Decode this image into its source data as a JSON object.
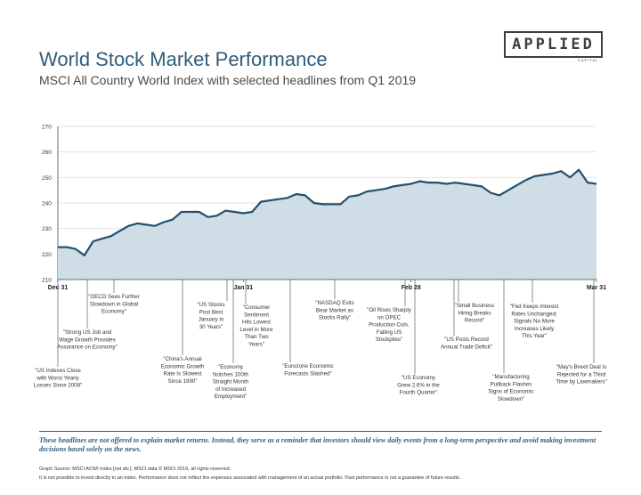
{
  "logo": {
    "main": "APPLIED",
    "sub": "CAPITAL"
  },
  "header": {
    "title": "World Stock Market Performance",
    "subtitle": "MSCI All Country World Index with selected headlines from Q1 2019"
  },
  "footer": {
    "disclaimer": "These headlines are not offered to explain market returns. Instead, they serve as a reminder that investors should view daily events from a long-term perspective and avoid making investment decisions based solely on the news.",
    "source_line1": "Graph Source: MSCI ACWI Index [net div.]. MSCI data © MSCI 2019, all rights reserved.",
    "source_line2": "It is not possible to invest directly in an index. Performance does not reflect the expenses associated with management of an actual portfolio. Past performance is not a guarantee of future results."
  },
  "chart_data": {
    "type": "area",
    "title": "World Stock Market Performance",
    "subtitle": "MSCI All Country World Index with selected headlines from Q1 2019",
    "xlabel": "",
    "ylabel": "",
    "ylim": [
      210,
      270
    ],
    "yticks": [
      210,
      220,
      230,
      240,
      250,
      260,
      270
    ],
    "xticks": [
      {
        "label": "Dec 31",
        "i": 0
      },
      {
        "label": "Jan 31",
        "i": 21
      },
      {
        "label": "Feb 28",
        "i": 40
      },
      {
        "label": "Mar 31",
        "i": 61
      }
    ],
    "grid": true,
    "colors": {
      "fill": "#cfdde6",
      "line": "#23506d",
      "text": "#333333"
    },
    "values": [
      222.7,
      222.7,
      222,
      219.5,
      225,
      226,
      227,
      229,
      231,
      232,
      231.5,
      231,
      232.5,
      233.5,
      236.5,
      236.5,
      236.5,
      234.5,
      235,
      237,
      236.5,
      236,
      236.5,
      240.5,
      241,
      241.5,
      242,
      243.5,
      243,
      240,
      239.5,
      239.5,
      239.5,
      242.5,
      243,
      244.5,
      245,
      245.5,
      246.5,
      247,
      247.5,
      248.5,
      248,
      248,
      247.5,
      248,
      247.5,
      247,
      246.5,
      244,
      243,
      245,
      247,
      249,
      250.5,
      251,
      251.5,
      252.5,
      250,
      253,
      248,
      247.5
    ],
    "annotations": [
      {
        "text": "\"US Indexes Close with Worst Yearly Losses Since 2008\"",
        "i": 0
      },
      {
        "text": "\"Strong US Job and Wage Growth Provides Assurance on Economy\"",
        "i": 4
      },
      {
        "text": "\"OECD Sees Further Slowdown in Global Economy\"",
        "i": 8
      },
      {
        "text": "\"China's Annual Economic Growth Rate Is Slowest Since 1990\"",
        "i": 14
      },
      {
        "text": "\"US Stocks Post Best January in 30 Years\"",
        "i": 21
      },
      {
        "text": "\"Economy Notches 100th Straight Month of Increased Employment\"",
        "i": 22
      },
      {
        "text": "\"Consumer Sentiment Hits Lowest Level in More Than Two Years\"",
        "i": 23
      },
      {
        "text": "\"Eurozone Economic Forecasts Slashed\"",
        "i": 28
      },
      {
        "text": "\"NASDAQ Exits Bear Market as Stocks Rally\"",
        "i": 34
      },
      {
        "text": "\"Oil Rises Sharply on OPEC Production Cuts, Falling US Stockpiles\"",
        "i": 40
      },
      {
        "text": "\"US Economy Grew 2.6% in the Fourth Quarter\"",
        "i": 41
      },
      {
        "text": "\"US Posts Record Annual Trade Deficit\"",
        "i": 46
      },
      {
        "text": "\"Small Business Hiring Breaks Record\"",
        "i": 48
      },
      {
        "text": "\"Manufacturing Pullback Flashes Signs of Economic Slowdown\"",
        "i": 53
      },
      {
        "text": "\"Fed Keeps Interest Rates Unchanged; Signals No More Increases Likely This Year\"",
        "i": 58
      },
      {
        "text": "\"May's Brexit Deal Is Rejected for a Third Time by Lawmakers\"",
        "i": 61
      }
    ]
  }
}
